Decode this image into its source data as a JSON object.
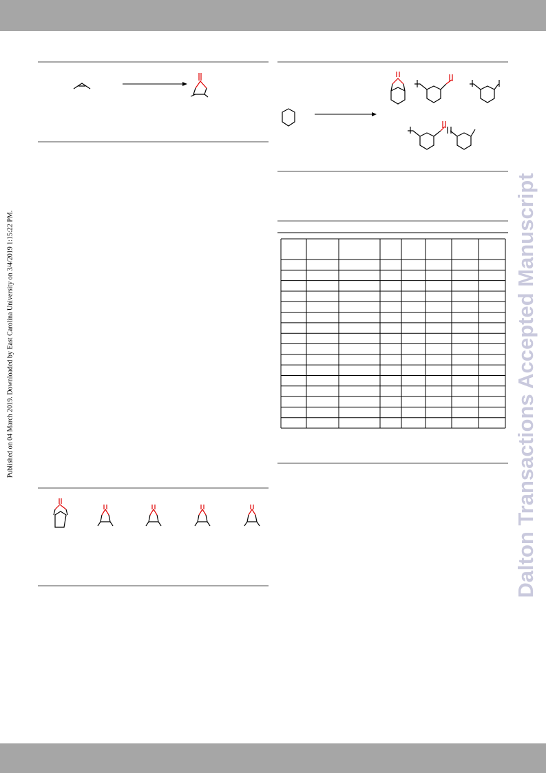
{
  "sidebar_note": "Published on 04 March 2019. Downloaded by East Carolina University on 3/4/2019 1:15:22 PM.",
  "watermark": "Dalton Transactions Accepted Manuscript"
}
